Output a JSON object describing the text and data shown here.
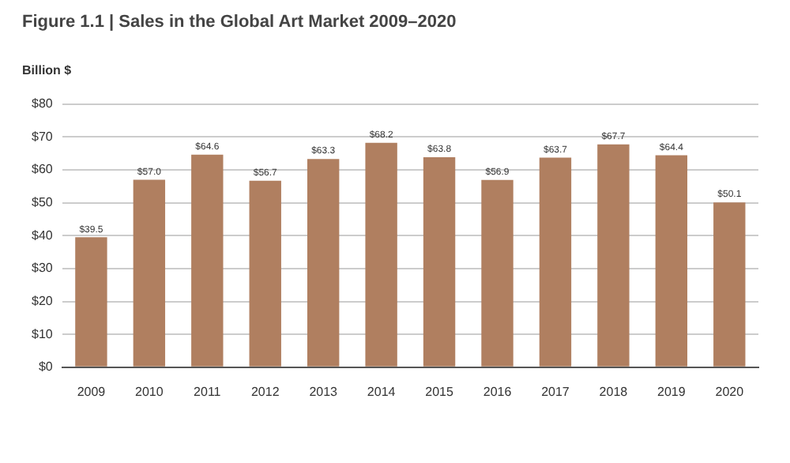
{
  "chart_data": {
    "type": "bar",
    "title": "Figure 1.1 | Sales in the Global Art Market 2009–2020",
    "ylabel": "Billion $",
    "categories": [
      "2009",
      "2010",
      "2011",
      "2012",
      "2013",
      "2014",
      "2015",
      "2016",
      "2017",
      "2018",
      "2019",
      "2020"
    ],
    "values": [
      39.5,
      57.0,
      64.6,
      56.7,
      63.3,
      68.2,
      63.8,
      56.9,
      63.7,
      67.7,
      64.4,
      50.1
    ],
    "value_labels": [
      "$39.5",
      "$57.0",
      "$64.6",
      "$56.7",
      "$63.3",
      "$68.2",
      "$63.8",
      "$56.9",
      "$63.7",
      "$67.7",
      "$64.4",
      "$50.1"
    ],
    "color": "#b07f60",
    "ylim": [
      0,
      80
    ],
    "yticks": [
      {
        "value": 0,
        "label": "$0"
      },
      {
        "value": 10,
        "label": "$10"
      },
      {
        "value": 20,
        "label": "$20"
      },
      {
        "value": 30,
        "label": "$30"
      },
      {
        "value": 40,
        "label": "$40"
      },
      {
        "value": 50,
        "label": "$50"
      },
      {
        "value": 60,
        "label": "$60"
      },
      {
        "value": 70,
        "label": "$70"
      },
      {
        "value": 80,
        "label": "$80"
      }
    ],
    "grid": "y",
    "legend": false
  }
}
